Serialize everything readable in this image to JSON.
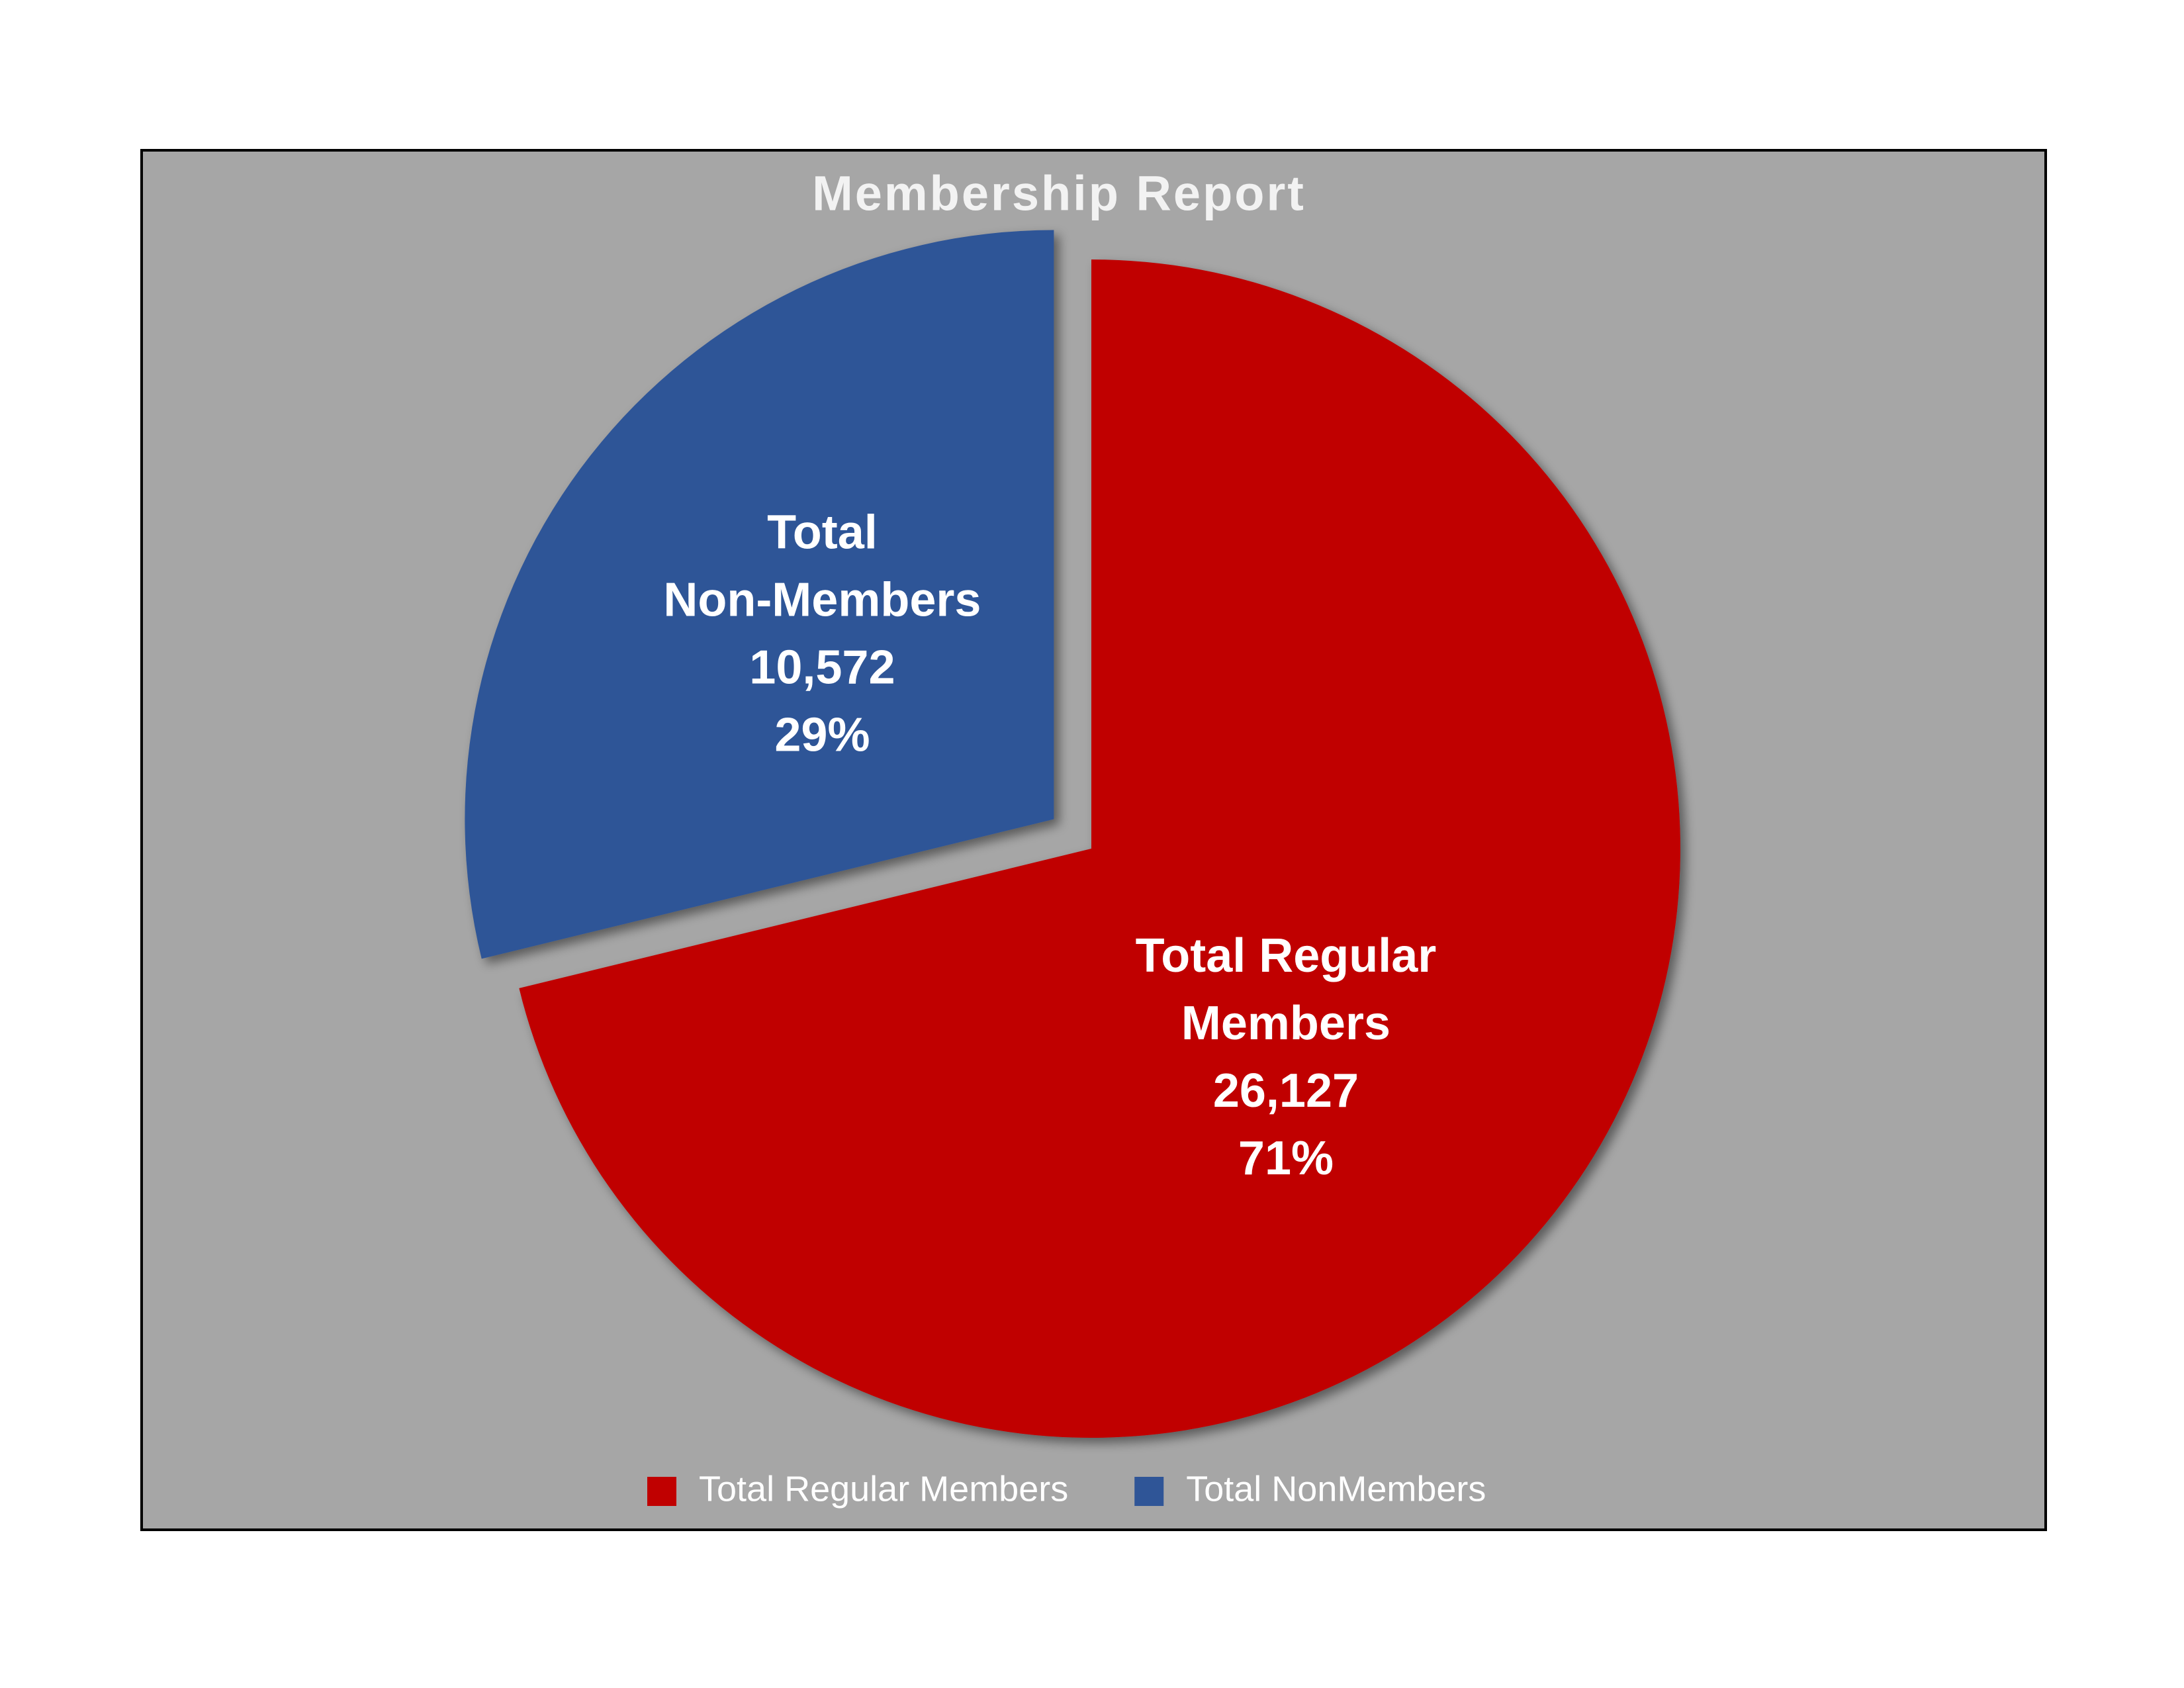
{
  "chart_data": {
    "type": "pie",
    "title": "Membership Report",
    "categories": [
      "Total Regular Members",
      "Total NonMembers"
    ],
    "slice_labels": [
      [
        "Total Regular",
        "Members"
      ],
      [
        "Total",
        "Non-Members"
      ]
    ],
    "values": [
      26127,
      10572
    ],
    "value_labels": [
      "26,127",
      "10,572"
    ],
    "percents": [
      71,
      29
    ],
    "percent_labels": [
      "71%",
      "29%"
    ],
    "colors": [
      "#c00000",
      "#2f5597"
    ],
    "legend": "bottom"
  }
}
